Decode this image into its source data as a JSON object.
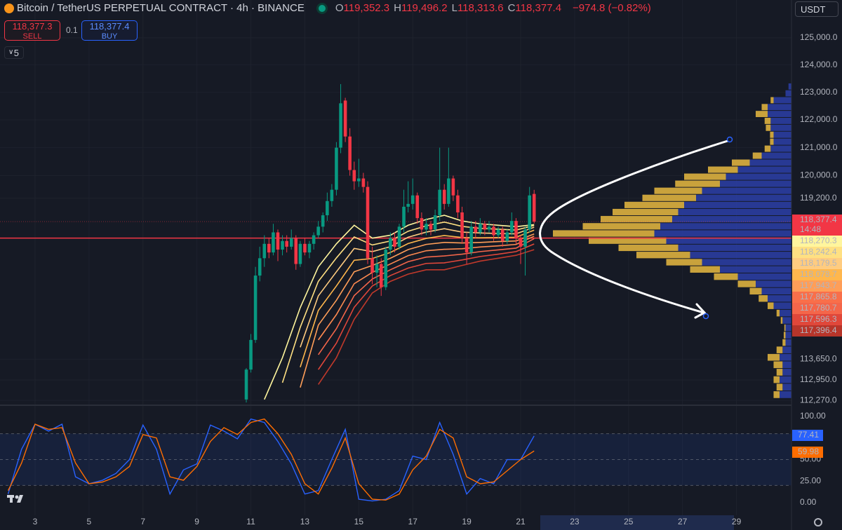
{
  "header": {
    "symbol": "Bitcoin / TetherUS PERPETUAL CONTRACT · 4h · BINANCE",
    "ohlc": [
      {
        "key": "O",
        "value": "119,352.3"
      },
      {
        "key": "H",
        "value": "119,496.2"
      },
      {
        "key": "L",
        "value": "118,313.6"
      },
      {
        "key": "C",
        "value": "118,377.4"
      }
    ],
    "change": "−974.8 (−0.82%)",
    "sell_price": "118,377.3",
    "sell": "SELL",
    "quantity": "0.1",
    "buy_price": "118,377.4",
    "buy": "BUY",
    "indicators_count": "5",
    "currency": "USDT"
  },
  "chart_data": [
    {
      "type": "candlestick",
      "x": [
        10.83,
        11,
        11.17,
        11.33,
        11.5,
        11.67,
        11.83,
        12,
        12.17,
        12.33,
        12.5,
        12.67,
        12.83,
        13,
        13.17,
        13.33,
        13.5,
        13.67,
        13.83,
        14,
        14.17,
        14.33,
        14.5,
        14.67,
        14.83,
        15,
        15.17,
        15.33,
        15.5,
        15.67,
        15.83,
        16,
        16.17,
        16.33,
        16.5,
        16.67,
        16.83,
        17,
        17.17,
        17.33,
        17.5,
        17.67,
        17.83,
        18,
        18.17,
        18.33,
        18.5,
        18.67,
        18.83,
        19,
        19.17,
        19.33,
        19.5,
        19.67,
        19.83,
        20,
        20.17,
        20.33,
        20.5,
        20.67,
        20.83,
        21,
        21.17,
        21.33,
        21.5
      ],
      "open": [
        112300,
        113300,
        114300,
        116500,
        117100,
        117600,
        117300,
        118000,
        117400,
        117700,
        117500,
        117800,
        116900,
        117600,
        117300,
        117600,
        117900,
        118200,
        118600,
        119100,
        119500,
        121000,
        122700,
        121400,
        120200,
        119800,
        119900,
        119600,
        117100,
        116600,
        116900,
        116100,
        117400,
        117800,
        117500,
        118200,
        118900,
        119000,
        119300,
        118500,
        118100,
        118300,
        118100,
        118600,
        119500,
        119000,
        119900,
        119300,
        118700,
        117800,
        117300,
        118200,
        118000,
        118300,
        118100,
        118200,
        117900,
        118100,
        117700,
        118000,
        118400,
        117800,
        117500,
        118100,
        119352.3
      ],
      "high": [
        113350,
        114500,
        116800,
        117500,
        117900,
        117800,
        118300,
        118100,
        117900,
        117900,
        118100,
        117900,
        117700,
        117800,
        117700,
        118000,
        118400,
        118700,
        119400,
        119700,
        121200,
        123300,
        122800,
        121700,
        120500,
        120600,
        120100,
        119800,
        117500,
        117200,
        117100,
        117500,
        118000,
        118000,
        118300,
        119500,
        119800,
        119900,
        119400,
        118700,
        118500,
        118400,
        118800,
        121000,
        119700,
        121000,
        120000,
        119500,
        118900,
        118000,
        118400,
        118400,
        118500,
        118400,
        118400,
        118300,
        118200,
        118200,
        118100,
        118700,
        118500,
        117900,
        118200,
        119600,
        119496.2
      ],
      "low": [
        112200,
        113200,
        114200,
        116300,
        116800,
        117100,
        117200,
        117000,
        117200,
        117300,
        117400,
        116700,
        116800,
        117200,
        117100,
        117400,
        117800,
        118000,
        118400,
        118900,
        119300,
        120800,
        121200,
        120000,
        119500,
        119600,
        119400,
        116900,
        116200,
        116100,
        115800,
        116000,
        117200,
        117300,
        117400,
        118000,
        118700,
        118800,
        118300,
        117900,
        117900,
        117900,
        118000,
        118400,
        118800,
        118900,
        119100,
        118500,
        117600,
        116900,
        117200,
        117800,
        117900,
        117900,
        118000,
        117700,
        117800,
        117500,
        117600,
        117900,
        117600,
        116900,
        116500,
        118000,
        118313.6
      ],
      "close": [
        113300,
        114300,
        116500,
        117100,
        117600,
        117300,
        118000,
        117400,
        117700,
        117500,
        117800,
        116900,
        117600,
        117300,
        117600,
        117900,
        118200,
        118600,
        119100,
        119500,
        121000,
        122600,
        121400,
        120200,
        119800,
        119900,
        119600,
        117100,
        116600,
        116900,
        116100,
        117400,
        117800,
        117500,
        118200,
        118900,
        119000,
        119300,
        118500,
        118100,
        118300,
        118100,
        118600,
        119500,
        119000,
        119900,
        119300,
        118700,
        117800,
        117300,
        118200,
        118000,
        118300,
        118100,
        118200,
        117900,
        118100,
        117700,
        118000,
        118400,
        117800,
        117500,
        118100,
        119300,
        118377.4
      ],
      "up_color": "#089981",
      "down_color": "#f23645",
      "xlim": [
        1.7,
        31.04
      ],
      "xticks": [
        3,
        5,
        7,
        9,
        11,
        13,
        15,
        17,
        19,
        21,
        23,
        25,
        27,
        29
      ],
      "ylim": [
        112110,
        126410
      ],
      "log_scale": true,
      "grid": true,
      "yticks": [
        {
          "value": 125000,
          "label": "125,000.0"
        },
        {
          "value": 124000,
          "label": "124,000.0"
        },
        {
          "value": 123000,
          "label": "123,000.0"
        },
        {
          "value": 122000,
          "label": "122,000.0"
        },
        {
          "value": 121000,
          "label": "121,000.0"
        },
        {
          "value": 120000,
          "label": "120,000.0"
        },
        {
          "value": 119200,
          "label": "119,200.0"
        },
        {
          "value": 113650,
          "label": "113,650.0"
        },
        {
          "value": 112950,
          "label": "112,950.0"
        },
        {
          "value": 112270,
          "label": "112,270.0"
        }
      ],
      "ribbon": {
        "x": [
          11.5,
          12.17,
          12.83,
          13.5,
          14.17,
          14.83,
          15.5,
          16.17,
          16.83,
          17.5,
          18.17,
          18.83,
          19.5,
          20.17,
          20.83,
          21.5
        ],
        "series": [
          {
            "color": "#fff59d",
            "values": [
              112300,
              113700,
              115400,
              116800,
              117600,
              118250,
              117800,
              117900,
              118250,
              118450,
              118600,
              118400,
              118300,
              118250,
              118200,
              118270.3
            ]
          },
          {
            "color": "#ffe082",
            "values": [
              null,
              112860,
              114730,
              116300,
              117110,
              117840,
              117560,
              117700,
              118040,
              118230,
              118360,
              118210,
              118140,
              118110,
              118080,
              118242.4
            ]
          },
          {
            "color": "#ffcc80",
            "values": [
              null,
              null,
              114050,
              115800,
              116630,
              117440,
              117330,
              117500,
              117830,
              118010,
              118130,
              118010,
              117980,
              117960,
              117950,
              118179.5
            ]
          },
          {
            "color": "#ffb74d",
            "values": [
              null,
              null,
              113380,
              115300,
              116140,
              117030,
              117090,
              117300,
              117610,
              117790,
              117890,
              117820,
              117810,
              117820,
              117830,
              118078.7
            ]
          },
          {
            "color": "#ff9e58",
            "values": [
              null,
              null,
              112700,
              114800,
              115650,
              116630,
              116850,
              117100,
              117400,
              117580,
              117650,
              117630,
              117650,
              117680,
              117700,
              117943.7
            ]
          },
          {
            "color": "#ff8a50",
            "values": [
              null,
              null,
              null,
              114300,
              115160,
              116220,
              116610,
              116900,
              117190,
              117360,
              117410,
              117430,
              117490,
              117530,
              117580,
              117865.8
            ]
          },
          {
            "color": "#f4664a",
            "values": [
              null,
              null,
              null,
              113800,
              114680,
              115810,
              116380,
              116700,
              116980,
              117140,
              117180,
              117240,
              117330,
              117390,
              117450,
              117780.7
            ]
          },
          {
            "color": "#e0473a",
            "values": [
              null,
              null,
              null,
              113300,
              114190,
              115410,
              116140,
              116500,
              116760,
              116920,
              116940,
              117040,
              117160,
              117240,
              117330,
              117596.3
            ]
          },
          {
            "color": "#c0392b",
            "values": [
              null,
              null,
              null,
              112800,
              113700,
              115000,
              115900,
              116300,
              116550,
              116700,
              116700,
              116850,
              117000,
              117100,
              117200,
              117396.4
            ]
          }
        ]
      },
      "price_labels": [
        {
          "value": 118377.4,
          "label": "118,377.4",
          "color": "#f23645",
          "text_color": "#ffffff"
        },
        {
          "value": 118270.3,
          "label": "118,270.3",
          "color": "#fff59d",
          "text_color": "#131722"
        },
        {
          "value": 118242.4,
          "label": "118,242.4",
          "color": "#ffe082",
          "text_color": "#131722"
        },
        {
          "value": 118179.5,
          "label": "118,179.5",
          "color": "#ffcc80",
          "text_color": "#131722"
        },
        {
          "value": 118078.7,
          "label": "118,078.7",
          "color": "#ffb74d",
          "text_color": "#ffffff"
        },
        {
          "value": 117943.7,
          "label": "117,943.7",
          "color": "#ff9e58",
          "text_color": "#ffffff"
        },
        {
          "value": 117865.8,
          "label": "117,865.8",
          "color": "#f96f4a",
          "text_color": "#ffffff"
        },
        {
          "value": 117780.7,
          "label": "117,780.7",
          "color": "#f4664a",
          "text_color": "#ffffff"
        },
        {
          "value": 117596.3,
          "label": "117,596.3",
          "color": "#e0473a",
          "text_color": "#ffffff"
        },
        {
          "value": 117396.4,
          "label": "117,396.4",
          "color": "#b7352a",
          "text_color": "#ffffff"
        }
      ],
      "countdown": "14:48",
      "horizontal_line": {
        "value": 117800,
        "color": "#f23645"
      },
      "volume_profile": {
        "up_color": "#2b3fa8",
        "down_color": "#c9a23c",
        "prices": [
          123200,
          122950,
          122700,
          122450,
          122200,
          121950,
          121700,
          121450,
          121200,
          120950,
          120700,
          120450,
          120200,
          119950,
          119700,
          119450,
          119200,
          118950,
          118700,
          118450,
          118200,
          117950,
          117700,
          117450,
          117200,
          116950,
          116700,
          116450,
          116200,
          115950,
          115700,
          115450,
          115200,
          114950,
          114700,
          114450,
          114200,
          113950,
          113700,
          113450,
          113200,
          112950,
          112700,
          112450
        ],
        "up": [
          5,
          10,
          30,
          40,
          40,
          35,
          35,
          30,
          30,
          35,
          50,
          70,
          90,
          110,
          120,
          150,
          160,
          180,
          190,
          200,
          220,
          230,
          210,
          190,
          170,
          150,
          120,
          90,
          60,
          50,
          40,
          30,
          20,
          15,
          10,
          10,
          10,
          15,
          20,
          15,
          15,
          20,
          15,
          20
        ],
        "down": [
          0,
          0,
          5,
          10,
          20,
          10,
          8,
          6,
          6,
          10,
          15,
          30,
          50,
          70,
          75,
          80,
          90,
          100,
          110,
          120,
          130,
          170,
          130,
          100,
          90,
          60,
          50,
          40,
          30,
          20,
          15,
          10,
          5,
          3,
          2,
          3,
          5,
          10,
          20,
          15,
          10,
          10,
          10,
          10
        ]
      }
    },
    {
      "type": "line",
      "x": [
        2,
        2.5,
        3,
        3.5,
        4,
        4.5,
        5,
        5.5,
        6,
        6.5,
        7,
        7.5,
        8,
        8.5,
        9,
        9.5,
        10,
        10.5,
        11,
        11.5,
        12,
        12.5,
        13,
        13.5,
        14,
        14.5,
        15,
        15.5,
        16,
        16.5,
        17,
        17.5,
        18,
        18.5,
        19,
        19.5,
        20,
        20.5,
        21,
        21.5
      ],
      "xlim": [
        1.7,
        31.04
      ],
      "ylim": [
        -14.6,
        113
      ],
      "yticks": [
        {
          "value": 100,
          "label": "100.00"
        },
        {
          "value": 50,
          "label": "50.00"
        },
        {
          "value": 25,
          "label": "25.00"
        },
        {
          "value": 0,
          "label": "0.00"
        }
      ],
      "band": [
        20,
        80
      ],
      "midline": 50,
      "band_color": "#2962ff",
      "series": [
        {
          "color": "#2962ff",
          "last_label": "77.41",
          "values": [
            10,
            62,
            91,
            83,
            91,
            30,
            22,
            26,
            34,
            50,
            90,
            62,
            10,
            38,
            45,
            90,
            83,
            74,
            97,
            93,
            71,
            45,
            10,
            14,
            50,
            85,
            4,
            2,
            4,
            14,
            54,
            50,
            93,
            56,
            10,
            28,
            22,
            50,
            50,
            77.41
          ]
        },
        {
          "color": "#ff6d00",
          "last_label": "59.98",
          "values": [
            14,
            46,
            91,
            85,
            87,
            46,
            22,
            24,
            30,
            42,
            79,
            75,
            30,
            26,
            42,
            71,
            87,
            79,
            93,
            97,
            80,
            56,
            22,
            10,
            40,
            75,
            22,
            4,
            3,
            10,
            38,
            54,
            85,
            75,
            30,
            22,
            24,
            37,
            50,
            59.98
          ]
        }
      ]
    }
  ]
}
